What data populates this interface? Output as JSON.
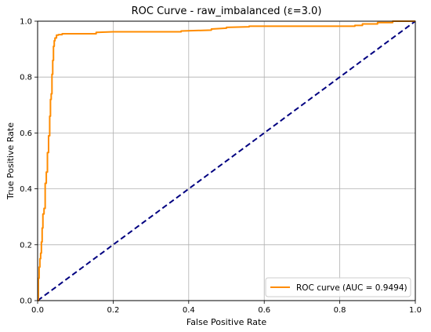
{
  "chart_data": {
    "type": "line",
    "title": "ROC Curve - raw_imbalanced (ε=3.0)",
    "xlabel": "False Positive Rate",
    "ylabel": "True Positive Rate",
    "xlim": [
      0.0,
      1.0
    ],
    "ylim": [
      0.0,
      1.0
    ],
    "x_ticks": [
      "0.0",
      "0.2",
      "0.4",
      "0.6",
      "0.8",
      "1.0"
    ],
    "y_ticks": [
      "0.0",
      "0.2",
      "0.4",
      "0.6",
      "0.8",
      "1.0"
    ],
    "grid": true,
    "legend_position": "lower-right",
    "series": [
      {
        "name": "ROC curve (AUC = 0.9494)",
        "color": "#ff8c00",
        "style": "solid",
        "x": [
          0.0,
          0.002,
          0.002,
          0.004,
          0.004,
          0.006,
          0.006,
          0.008,
          0.008,
          0.01,
          0.01,
          0.012,
          0.012,
          0.014,
          0.014,
          0.017,
          0.017,
          0.02,
          0.02,
          0.023,
          0.023,
          0.026,
          0.026,
          0.029,
          0.029,
          0.032,
          0.032,
          0.034,
          0.034,
          0.036,
          0.036,
          0.038,
          0.038,
          0.04,
          0.04,
          0.042,
          0.042,
          0.044,
          0.044,
          0.046,
          0.046,
          0.05,
          0.05,
          0.055,
          0.055,
          0.065,
          0.065,
          0.08,
          0.15,
          0.155,
          0.155,
          0.2,
          0.38,
          0.38,
          0.46,
          0.46,
          0.5,
          0.5,
          0.56,
          0.56,
          0.84,
          0.84,
          0.86,
          0.86,
          0.9,
          0.9,
          0.94,
          0.94,
          1.0
        ],
        "y": [
          0.0,
          0.0,
          0.08,
          0.08,
          0.12,
          0.12,
          0.15,
          0.15,
          0.17,
          0.17,
          0.21,
          0.21,
          0.26,
          0.26,
          0.31,
          0.31,
          0.33,
          0.33,
          0.42,
          0.42,
          0.46,
          0.46,
          0.53,
          0.53,
          0.59,
          0.59,
          0.66,
          0.66,
          0.72,
          0.72,
          0.74,
          0.74,
          0.81,
          0.81,
          0.86,
          0.86,
          0.91,
          0.91,
          0.93,
          0.93,
          0.94,
          0.94,
          0.95,
          0.95,
          0.952,
          0.952,
          0.955,
          0.955,
          0.955,
          0.955,
          0.96,
          0.962,
          0.962,
          0.965,
          0.968,
          0.972,
          0.975,
          0.978,
          0.98,
          0.982,
          0.982,
          0.985,
          0.985,
          0.99,
          0.99,
          0.995,
          0.995,
          1.0,
          1.0
        ]
      },
      {
        "name": "",
        "color": "#000080",
        "style": "dashed",
        "x": [
          0.0,
          1.0
        ],
        "y": [
          0.0,
          1.0
        ]
      }
    ]
  }
}
